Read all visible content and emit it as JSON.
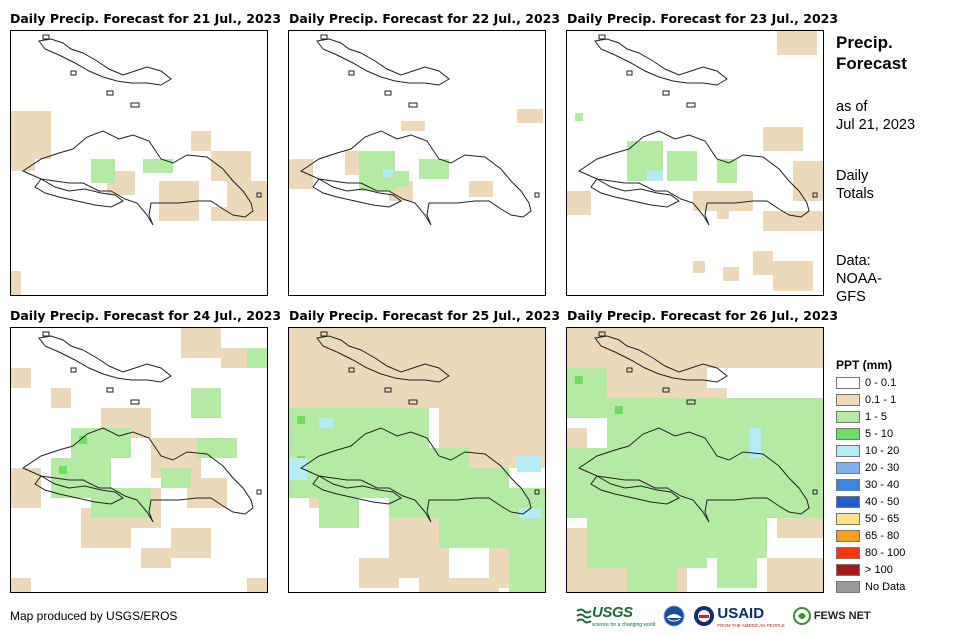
{
  "panels": [
    {
      "title": "Daily Precip. Forecast for 21 Jul., 2023"
    },
    {
      "title": "Daily Precip. Forecast for 22 Jul., 2023"
    },
    {
      "title": "Daily Precip. Forecast for 23 Jul., 2023"
    },
    {
      "title": "Daily Precip. Forecast for 24 Jul., 2023"
    },
    {
      "title": "Daily Precip. Forecast for 25 Jul., 2023"
    },
    {
      "title": "Daily Precip. Forecast for 26 Jul., 2023"
    }
  ],
  "side": {
    "title_line1": "Precip.",
    "title_line2": "Forecast",
    "asof_line1": "as of",
    "asof_line2": "Jul 21, 2023",
    "daily_line1": "Daily",
    "daily_line2": "Totals",
    "data_line1": "Data:",
    "data_line2": "NOAA-",
    "data_line3": "GFS"
  },
  "legend": {
    "title": "PPT (mm)",
    "items": [
      {
        "label": "0 - 0.1",
        "color": "#ffffff"
      },
      {
        "label": "0.1 - 1",
        "color": "#ebd9bc"
      },
      {
        "label": "1 - 5",
        "color": "#b4eaa4"
      },
      {
        "label": "5 - 10",
        "color": "#6fdc62"
      },
      {
        "label": "10 - 20",
        "color": "#b3ecf5"
      },
      {
        "label": "20 - 30",
        "color": "#7fb1ee"
      },
      {
        "label": "30 - 40",
        "color": "#3d86e0"
      },
      {
        "label": "40 - 50",
        "color": "#1f5ed1"
      },
      {
        "label": "50 - 65",
        "color": "#fde48a"
      },
      {
        "label": "65 - 80",
        "color": "#f8a21c"
      },
      {
        "label": "80 - 100",
        "color": "#f63a0e"
      },
      {
        "label": "> 100",
        "color": "#a71b1b"
      },
      {
        "label": "No Data",
        "color": "#999999"
      }
    ]
  },
  "credit": "Map produced by USGS/EROS",
  "logos": {
    "usgs": "USGS",
    "usgs_tag": "science for a changing world",
    "usaid": "USAID",
    "usaid_tag": "FROM THE AMERICAN PEOPLE",
    "fews": "FEWS NET"
  }
}
